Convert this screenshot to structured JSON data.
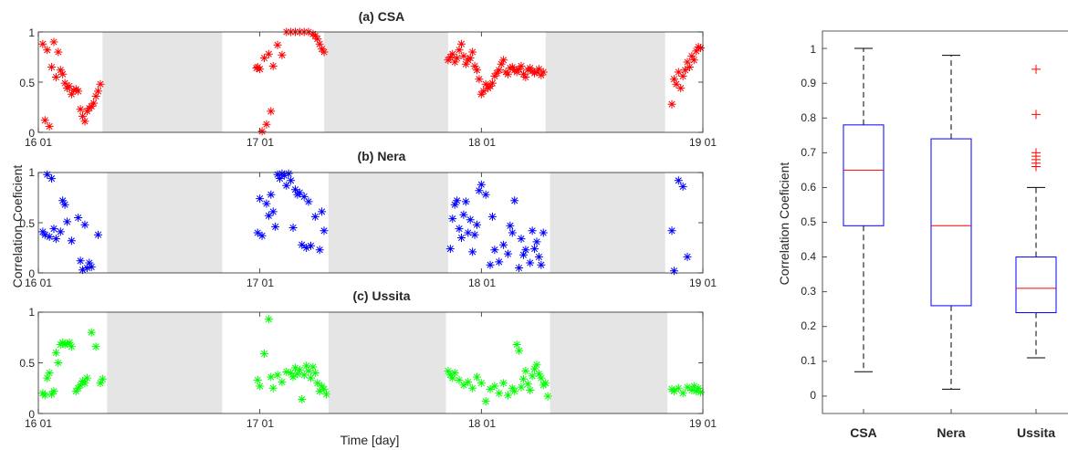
{
  "chart_data": [
    {
      "type": "scatter",
      "title": "(a) CSA",
      "xlabel": "Time [day]",
      "ylabel": "Correlation Coeficient",
      "x_ticks": [
        "16 01",
        "17 01",
        "18 01",
        "19 01"
      ],
      "y_ticks": [
        "0",
        "0.5",
        "1"
      ],
      "ylim": [
        0,
        1
      ],
      "marker": "*",
      "color": "#ff0000",
      "shaded_color": "#e5e5e5",
      "shaded_ranges_day": [
        [
          0.29,
          0.83
        ],
        [
          1.29,
          1.85
        ],
        [
          2.29,
          2.83
        ]
      ],
      "x": [
        0.02,
        0.03,
        0.04,
        0.05,
        0.06,
        0.07,
        0.08,
        0.09,
        0.1,
        0.11,
        0.12,
        0.13,
        0.14,
        0.15,
        0.16,
        0.17,
        0.18,
        0.19,
        0.2,
        0.21,
        0.22,
        0.23,
        0.24,
        0.25,
        0.26,
        0.27,
        0.28,
        0.985,
        0.99,
        1.0,
        1.01,
        1.02,
        1.03,
        1.04,
        1.05,
        1.06,
        1.08,
        1.1,
        1.12,
        1.14,
        1.16,
        1.18,
        1.2,
        1.22,
        1.24,
        1.25,
        1.26,
        1.27,
        1.28,
        1.29,
        1.85,
        1.86,
        1.87,
        1.88,
        1.89,
        1.9,
        1.91,
        1.92,
        1.93,
        1.94,
        1.95,
        1.96,
        1.97,
        1.98,
        1.99,
        2.0,
        2.01,
        2.02,
        2.03,
        2.04,
        2.05,
        2.06,
        2.07,
        2.08,
        2.09,
        2.1,
        2.11,
        2.12,
        2.13,
        2.14,
        2.15,
        2.16,
        2.17,
        2.18,
        2.19,
        2.2,
        2.21,
        2.22,
        2.23,
        2.24,
        2.25,
        2.26,
        2.27,
        2.28,
        2.86,
        2.87,
        2.88,
        2.89,
        2.9,
        2.91,
        2.92,
        2.93,
        2.94,
        2.95,
        2.96,
        2.97,
        2.98,
        2.99
      ],
      "y": [
        0.88,
        0.12,
        0.82,
        0.06,
        0.65,
        0.9,
        0.55,
        0.8,
        0.62,
        0.58,
        0.49,
        0.44,
        0.46,
        0.38,
        0.42,
        0.43,
        0.41,
        0.23,
        0.16,
        0.11,
        0.21,
        0.24,
        0.26,
        0.29,
        0.36,
        0.41,
        0.48,
        0.64,
        0.65,
        0.63,
        0.01,
        0.74,
        0.08,
        0.78,
        0.21,
        0.66,
        0.87,
        0.77,
        1.0,
        1.0,
        1.0,
        1.0,
        1.0,
        1.0,
        0.98,
        0.96,
        0.93,
        0.88,
        0.83,
        0.8,
        0.72,
        0.75,
        0.78,
        0.7,
        0.74,
        0.82,
        0.88,
        0.76,
        0.68,
        0.72,
        0.74,
        0.8,
        0.66,
        0.62,
        0.53,
        0.38,
        0.41,
        0.48,
        0.44,
        0.46,
        0.49,
        0.56,
        0.59,
        0.62,
        0.68,
        0.72,
        0.6,
        0.58,
        0.64,
        0.65,
        0.62,
        0.6,
        0.63,
        0.66,
        0.58,
        0.55,
        0.62,
        0.64,
        0.61,
        0.59,
        0.6,
        0.63,
        0.57,
        0.6,
        0.28,
        0.53,
        0.48,
        0.6,
        0.44,
        0.56,
        0.62,
        0.7,
        0.65,
        0.76,
        0.72,
        0.81,
        0.85,
        0.84
      ]
    },
    {
      "type": "scatter",
      "title": "(b) Nera",
      "ylabel": "Correlation Coeficient",
      "x_ticks": [
        "16 01",
        "17 01",
        "18 01",
        "19 01"
      ],
      "y_ticks": [
        "0",
        "0.5",
        "1"
      ],
      "ylim": [
        0,
        1
      ],
      "marker": "*",
      "color": "#0000ff",
      "shaded_color": "#e5e5e5",
      "shaded_ranges_day": [
        [
          0.31,
          0.83
        ],
        [
          1.31,
          1.85
        ],
        [
          2.31,
          2.83
        ]
      ],
      "x": [
        0.02,
        0.03,
        0.04,
        0.05,
        0.06,
        0.07,
        0.08,
        0.1,
        0.11,
        0.12,
        0.13,
        0.15,
        0.18,
        0.19,
        0.2,
        0.21,
        0.22,
        0.23,
        0.24,
        0.27,
        0.99,
        1.0,
        1.01,
        1.03,
        1.04,
        1.05,
        1.06,
        1.07,
        1.08,
        1.09,
        1.1,
        1.11,
        1.12,
        1.13,
        1.14,
        1.15,
        1.16,
        1.17,
        1.18,
        1.19,
        1.2,
        1.21,
        1.22,
        1.23,
        1.25,
        1.27,
        1.28,
        1.29,
        1.86,
        1.87,
        1.88,
        1.89,
        1.9,
        1.91,
        1.92,
        1.93,
        1.94,
        1.95,
        1.96,
        1.97,
        1.98,
        1.99,
        2.0,
        2.02,
        2.04,
        2.05,
        2.06,
        2.08,
        2.1,
        2.12,
        2.13,
        2.14,
        2.15,
        2.17,
        2.18,
        2.19,
        2.2,
        2.22,
        2.23,
        2.24,
        2.25,
        2.26,
        2.27,
        2.28,
        2.86,
        2.87,
        2.89,
        2.91,
        2.93
      ],
      "y": [
        0.41,
        0.38,
        0.98,
        0.36,
        0.94,
        0.44,
        0.34,
        0.41,
        0.72,
        0.68,
        0.51,
        0.32,
        0.55,
        0.12,
        0.03,
        0.48,
        0.05,
        0.1,
        0.06,
        0.38,
        0.4,
        0.74,
        0.37,
        0.69,
        0.57,
        0.78,
        0.61,
        0.46,
        0.98,
        0.94,
        0.99,
        0.97,
        0.87,
        0.99,
        0.92,
        0.45,
        0.83,
        0.78,
        0.8,
        0.28,
        0.76,
        0.25,
        0.71,
        0.27,
        0.56,
        0.23,
        0.61,
        0.42,
        0.24,
        0.54,
        0.68,
        0.72,
        0.44,
        0.35,
        0.58,
        0.71,
        0.4,
        0.53,
        0.21,
        0.38,
        0.48,
        0.82,
        0.88,
        0.78,
        0.08,
        0.56,
        0.23,
        0.11,
        0.28,
        0.19,
        0.47,
        0.4,
        0.72,
        0.05,
        0.34,
        0.18,
        0.23,
        0.1,
        0.42,
        0.24,
        0.31,
        0.16,
        0.08,
        0.4,
        0.42,
        0.02,
        0.92,
        0.86,
        0.16
      ]
    },
    {
      "type": "scatter",
      "title": "(c) Ussita",
      "xlabel": "Time [day]",
      "ylabel": "Correlation Coeficient",
      "x_ticks": [
        "16 01",
        "17 01",
        "18 01",
        "19 01"
      ],
      "y_ticks": [
        "0",
        "0.5",
        "1"
      ],
      "ylim": [
        0,
        1
      ],
      "marker": "*",
      "color": "#00ff00",
      "shaded_color": "#e5e5e5",
      "shaded_ranges_day": [
        [
          0.31,
          0.83
        ],
        [
          1.31,
          1.84
        ],
        [
          2.31,
          2.84
        ]
      ],
      "x": [
        0.02,
        0.03,
        0.04,
        0.05,
        0.06,
        0.07,
        0.08,
        0.09,
        0.1,
        0.11,
        0.12,
        0.13,
        0.14,
        0.15,
        0.17,
        0.18,
        0.19,
        0.2,
        0.21,
        0.22,
        0.24,
        0.26,
        0.28,
        0.29,
        0.99,
        1.0,
        1.02,
        1.04,
        1.05,
        1.06,
        1.08,
        1.1,
        1.12,
        1.14,
        1.15,
        1.16,
        1.17,
        1.18,
        1.19,
        1.2,
        1.21,
        1.22,
        1.23,
        1.24,
        1.25,
        1.26,
        1.27,
        1.28,
        1.29,
        1.3,
        1.85,
        1.86,
        1.87,
        1.88,
        1.9,
        1.92,
        1.94,
        1.96,
        1.98,
        2.0,
        2.02,
        2.04,
        2.06,
        2.08,
        2.1,
        2.12,
        2.14,
        2.15,
        2.16,
        2.17,
        2.18,
        2.19,
        2.2,
        2.21,
        2.22,
        2.23,
        2.24,
        2.25,
        2.26,
        2.27,
        2.28,
        2.29,
        2.3,
        2.86,
        2.87,
        2.89,
        2.91,
        2.93,
        2.95,
        2.96,
        2.97,
        2.98,
        2.99
      ],
      "y": [
        0.2,
        0.18,
        0.35,
        0.4,
        0.19,
        0.22,
        0.6,
        0.5,
        0.68,
        0.7,
        0.68,
        0.69,
        0.7,
        0.66,
        0.22,
        0.25,
        0.28,
        0.32,
        0.3,
        0.35,
        0.8,
        0.66,
        0.3,
        0.34,
        0.33,
        0.27,
        0.59,
        0.93,
        0.36,
        0.25,
        0.38,
        0.31,
        0.41,
        0.4,
        0.36,
        0.45,
        0.39,
        0.43,
        0.14,
        0.38,
        0.47,
        0.42,
        0.35,
        0.46,
        0.4,
        0.3,
        0.22,
        0.27,
        0.24,
        0.19,
        0.42,
        0.38,
        0.35,
        0.4,
        0.33,
        0.28,
        0.31,
        0.25,
        0.36,
        0.3,
        0.12,
        0.24,
        0.27,
        0.2,
        0.3,
        0.18,
        0.25,
        0.22,
        0.68,
        0.62,
        0.26,
        0.34,
        0.42,
        0.29,
        0.23,
        0.37,
        0.44,
        0.48,
        0.39,
        0.35,
        0.28,
        0.3,
        0.17,
        0.24,
        0.22,
        0.25,
        0.2,
        0.26,
        0.23,
        0.27,
        0.22,
        0.25,
        0.21
      ]
    },
    {
      "type": "box",
      "ylabel": "Correlation Coeficient",
      "categories": [
        "CSA",
        "Nera",
        "Ussita"
      ],
      "y_ticks": [
        "0",
        "0.1",
        "0.2",
        "0.3",
        "0.4",
        "0.5",
        "0.6",
        "0.7",
        "0.8",
        "0.9",
        "1"
      ],
      "ylim": [
        -0.05,
        1.05
      ],
      "box_color": "#0000ff",
      "median_color": "#ff0000",
      "whisker_color": "#000000",
      "outlier_color": "#ff0000",
      "boxes": [
        {
          "name": "CSA",
          "whisker_low": 0.07,
          "q1": 0.49,
          "median": 0.65,
          "q3": 0.78,
          "whisker_high": 1.0,
          "outliers": []
        },
        {
          "name": "Nera",
          "whisker_low": 0.02,
          "q1": 0.26,
          "median": 0.49,
          "q3": 0.74,
          "whisker_high": 0.98,
          "outliers": []
        },
        {
          "name": "Ussita",
          "whisker_low": 0.11,
          "q1": 0.24,
          "median": 0.31,
          "q3": 0.4,
          "whisker_high": 0.6,
          "outliers": [
            0.94,
            0.81,
            0.7,
            0.69,
            0.68,
            0.67,
            0.66
          ]
        }
      ]
    }
  ]
}
